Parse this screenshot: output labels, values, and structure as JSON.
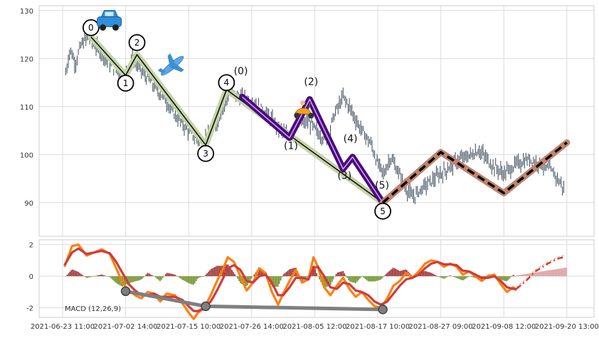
{
  "chart_data": [
    {
      "type": "candlestick",
      "panel": "price",
      "ylim": [
        83,
        131
      ],
      "y_ticks": [
        90,
        100,
        110,
        120,
        130
      ],
      "x_tick_labels": [
        "2021-06-23 11:00",
        "2021-07-02 14:00",
        "2021-07-15 10:00",
        "2021-07-26 14:00",
        "2021-08-05 12:00",
        "2021-08-17 10:00",
        "2021-08-27 09:00",
        "2021-09-08 12:00",
        "2021-09-20 13:00"
      ],
      "x_tick_positions": [
        0,
        1,
        2,
        3,
        4,
        5,
        6,
        7,
        8
      ],
      "price_path": [
        [
          0.05,
          117
        ],
        [
          0.12,
          122
        ],
        [
          0.2,
          119
        ],
        [
          0.3,
          123
        ],
        [
          0.42,
          124.5
        ],
        [
          0.5,
          123
        ],
        [
          0.62,
          121
        ],
        [
          0.75,
          119
        ],
        [
          0.9,
          117
        ],
        [
          1.0,
          116.5
        ],
        [
          1.1,
          120.5
        ],
        [
          1.2,
          118.5
        ],
        [
          1.4,
          115
        ],
        [
          1.6,
          112
        ],
        [
          1.8,
          108
        ],
        [
          2.0,
          105
        ],
        [
          2.2,
          102.5
        ],
        [
          2.4,
          105
        ],
        [
          2.55,
          110
        ],
        [
          2.65,
          113
        ],
        [
          2.8,
          112
        ],
        [
          3.0,
          111
        ],
        [
          3.2,
          109
        ],
        [
          3.4,
          106
        ],
        [
          3.55,
          104
        ],
        [
          3.7,
          106
        ],
        [
          3.9,
          107
        ],
        [
          4.05,
          104.5
        ],
        [
          4.2,
          103
        ],
        [
          4.3,
          108
        ],
        [
          4.45,
          112
        ],
        [
          4.55,
          110
        ],
        [
          4.7,
          106
        ],
        [
          4.9,
          102
        ],
        [
          5.0,
          98
        ],
        [
          5.1,
          96
        ],
        [
          5.2,
          99.5
        ],
        [
          5.3,
          97
        ],
        [
          5.45,
          93
        ],
        [
          5.55,
          91
        ],
        [
          5.7,
          93
        ],
        [
          5.9,
          95
        ],
        [
          6.1,
          97
        ],
        [
          6.3,
          99
        ],
        [
          6.5,
          100
        ],
        [
          6.6,
          101
        ],
        [
          6.8,
          98
        ],
        [
          7.0,
          96
        ],
        [
          7.2,
          98
        ],
        [
          7.4,
          99
        ],
        [
          7.6,
          98
        ],
        [
          7.8,
          96
        ],
        [
          7.95,
          93
        ]
      ],
      "series": [
        {
          "role": "impulse-wave",
          "color": "#c5d4a8",
          "points": [
            [
              0.45,
              124.5
            ],
            [
              1.0,
              116.5
            ],
            [
              1.18,
              120.8
            ],
            [
              2.27,
              102
            ],
            [
              2.6,
              113.5
            ],
            [
              5.08,
              90
            ]
          ],
          "labels": [
            "0",
            "1",
            "2",
            "3",
            "4",
            "5"
          ]
        },
        {
          "role": "corrective-wave",
          "color": "#4b0a7d",
          "points": [
            [
              2.85,
              112
            ],
            [
              3.6,
              103.5
            ],
            [
              3.92,
              111.5
            ],
            [
              4.45,
              97
            ],
            [
              4.6,
              99.5
            ],
            [
              5.08,
              90
            ]
          ],
          "labels": [
            "(0)",
            "(1)",
            "(2)",
            "(3)",
            "(4)",
            "(5)"
          ]
        },
        {
          "role": "projection",
          "color": "#c0846d",
          "points": [
            [
              5.08,
              90
            ],
            [
              6.0,
              100.5
            ],
            [
              7.0,
              92
            ],
            [
              8.0,
              102.5
            ]
          ]
        }
      ],
      "markers": [
        {
          "icon": "car-icon",
          "x": 0.74,
          "y": 127.5
        },
        {
          "icon": "airplane-icon",
          "x": 1.74,
          "y": 118.5
        },
        {
          "icon": "scooter-icon",
          "x": 3.83,
          "y": 109
        }
      ]
    },
    {
      "type": "line",
      "panel": "indicator",
      "title": "MACD (12,26,9)",
      "ylim": [
        -2.6,
        2.3
      ],
      "y_ticks": [
        -2,
        0,
        2
      ],
      "series": [
        {
          "role": "macd",
          "color": "#ff7f0e",
          "points": [
            [
              0.03,
              0.6
            ],
            [
              0.15,
              1.9
            ],
            [
              0.25,
              2.0
            ],
            [
              0.38,
              1.3
            ],
            [
              0.5,
              1.5
            ],
            [
              0.62,
              1.7
            ],
            [
              0.75,
              1.4
            ],
            [
              0.85,
              0.5
            ],
            [
              0.95,
              -0.4
            ],
            [
              1.05,
              -0.9
            ],
            [
              1.15,
              -1.2
            ],
            [
              1.25,
              -1.4
            ],
            [
              1.35,
              -1.0
            ],
            [
              1.45,
              -1.1
            ],
            [
              1.55,
              -1.6
            ],
            [
              1.65,
              -1.1
            ],
            [
              1.78,
              -1.2
            ],
            [
              1.9,
              -1.7
            ],
            [
              2.0,
              -2.3
            ],
            [
              2.08,
              -2.7
            ],
            [
              2.15,
              -2.3
            ],
            [
              2.25,
              -2.0
            ],
            [
              2.35,
              -1.2
            ],
            [
              2.45,
              -0.3
            ],
            [
              2.55,
              0.5
            ],
            [
              2.62,
              1.2
            ],
            [
              2.72,
              0.9
            ],
            [
              2.82,
              0.0
            ],
            [
              2.92,
              -0.9
            ],
            [
              3.02,
              -0.4
            ],
            [
              3.12,
              0.5
            ],
            [
              3.22,
              0.2
            ],
            [
              3.32,
              -1.0
            ],
            [
              3.42,
              -1.8
            ],
            [
              3.5,
              -1.1
            ],
            [
              3.6,
              -0.3
            ],
            [
              3.7,
              0.4
            ],
            [
              3.8,
              -0.4
            ],
            [
              3.9,
              -0.2
            ],
            [
              3.98,
              1.2
            ],
            [
              4.05,
              0.6
            ],
            [
              4.15,
              -0.7
            ],
            [
              4.25,
              -1.2
            ],
            [
              4.35,
              -0.6
            ],
            [
              4.45,
              -0.1
            ],
            [
              4.55,
              -0.8
            ],
            [
              4.65,
              -1.3
            ],
            [
              4.75,
              -1.0
            ],
            [
              4.85,
              -1.5
            ],
            [
              4.95,
              -1.9
            ],
            [
              5.05,
              -2.0
            ],
            [
              5.15,
              -1.4
            ],
            [
              5.25,
              -0.6
            ],
            [
              5.35,
              -0.3
            ],
            [
              5.45,
              0.2
            ],
            [
              5.55,
              -0.1
            ],
            [
              5.65,
              0.3
            ],
            [
              5.75,
              0.8
            ],
            [
              5.85,
              1.0
            ],
            [
              5.95,
              0.9
            ],
            [
              6.05,
              0.6
            ],
            [
              6.15,
              0.8
            ],
            [
              6.25,
              0.6
            ],
            [
              6.35,
              0.1
            ],
            [
              6.45,
              0.3
            ],
            [
              6.55,
              0.0
            ],
            [
              6.65,
              -0.3
            ],
            [
              6.75,
              0.0
            ],
            [
              6.85,
              0.1
            ],
            [
              6.95,
              -0.5
            ],
            [
              7.05,
              -1.0
            ],
            [
              7.15,
              -0.7
            ],
            [
              7.2,
              -0.9
            ]
          ]
        },
        {
          "role": "signal",
          "color": "#d03b3b",
          "points": [
            [
              0.03,
              0.7
            ],
            [
              0.15,
              1.5
            ],
            [
              0.25,
              1.75
            ],
            [
              0.38,
              1.4
            ],
            [
              0.5,
              1.5
            ],
            [
              0.62,
              1.6
            ],
            [
              0.75,
              1.45
            ],
            [
              0.85,
              0.9
            ],
            [
              0.95,
              0.2
            ],
            [
              1.05,
              -0.5
            ],
            [
              1.15,
              -0.9
            ],
            [
              1.25,
              -1.2
            ],
            [
              1.35,
              -1.2
            ],
            [
              1.45,
              -1.1
            ],
            [
              1.55,
              -1.3
            ],
            [
              1.65,
              -1.3
            ],
            [
              1.78,
              -1.3
            ],
            [
              1.9,
              -1.5
            ],
            [
              2.0,
              -1.9
            ],
            [
              2.08,
              -2.2
            ],
            [
              2.15,
              -2.2
            ],
            [
              2.25,
              -2.0
            ],
            [
              2.35,
              -1.6
            ],
            [
              2.45,
              -0.9
            ],
            [
              2.55,
              -0.1
            ],
            [
              2.62,
              0.5
            ],
            [
              2.72,
              0.7
            ],
            [
              2.82,
              0.4
            ],
            [
              2.92,
              -0.3
            ],
            [
              3.02,
              -0.4
            ],
            [
              3.12,
              0.0
            ],
            [
              3.22,
              0.1
            ],
            [
              3.32,
              -0.4
            ],
            [
              3.42,
              -1.2
            ],
            [
              3.5,
              -1.2
            ],
            [
              3.6,
              -0.7
            ],
            [
              3.7,
              -0.1
            ],
            [
              3.8,
              -0.1
            ],
            [
              3.9,
              -0.2
            ],
            [
              3.98,
              0.5
            ],
            [
              4.05,
              0.6
            ],
            [
              4.15,
              0.0
            ],
            [
              4.25,
              -0.7
            ],
            [
              4.35,
              -0.8
            ],
            [
              4.45,
              -0.4
            ],
            [
              4.55,
              -0.5
            ],
            [
              4.65,
              -0.9
            ],
            [
              4.75,
              -1.0
            ],
            [
              4.85,
              -1.2
            ],
            [
              4.95,
              -1.6
            ],
            [
              5.05,
              -1.8
            ],
            [
              5.15,
              -1.6
            ],
            [
              5.25,
              -1.1
            ],
            [
              5.35,
              -0.6
            ],
            [
              5.45,
              -0.2
            ],
            [
              5.55,
              -0.1
            ],
            [
              5.65,
              0.1
            ],
            [
              5.75,
              0.5
            ],
            [
              5.85,
              0.8
            ],
            [
              5.95,
              0.9
            ],
            [
              6.05,
              0.75
            ],
            [
              6.15,
              0.75
            ],
            [
              6.25,
              0.7
            ],
            [
              6.35,
              0.35
            ],
            [
              6.45,
              0.3
            ],
            [
              6.55,
              0.1
            ],
            [
              6.65,
              -0.1
            ],
            [
              6.75,
              -0.1
            ],
            [
              6.85,
              0.0
            ],
            [
              6.95,
              -0.3
            ],
            [
              7.05,
              -0.7
            ],
            [
              7.15,
              -0.8
            ],
            [
              7.2,
              -0.8
            ]
          ]
        },
        {
          "role": "projection",
          "color": "#d03b3b",
          "dashed": true,
          "points": [
            [
              7.2,
              -0.8
            ],
            [
              7.35,
              -0.3
            ],
            [
              7.5,
              0.3
            ],
            [
              7.7,
              0.8
            ],
            [
              7.85,
              1.1
            ],
            [
              7.95,
              1.2
            ]
          ]
        },
        {
          "role": "divergence",
          "color": "#7f7f7f",
          "points": [
            [
              1.0,
              -0.95
            ],
            [
              2.27,
              -1.9
            ],
            [
              5.08,
              -2.1
            ]
          ]
        }
      ],
      "histogram_colors": {
        "positive": "#9a2d2d",
        "negative": "#6b8e23",
        "projection": "#d99a9a"
      }
    }
  ]
}
